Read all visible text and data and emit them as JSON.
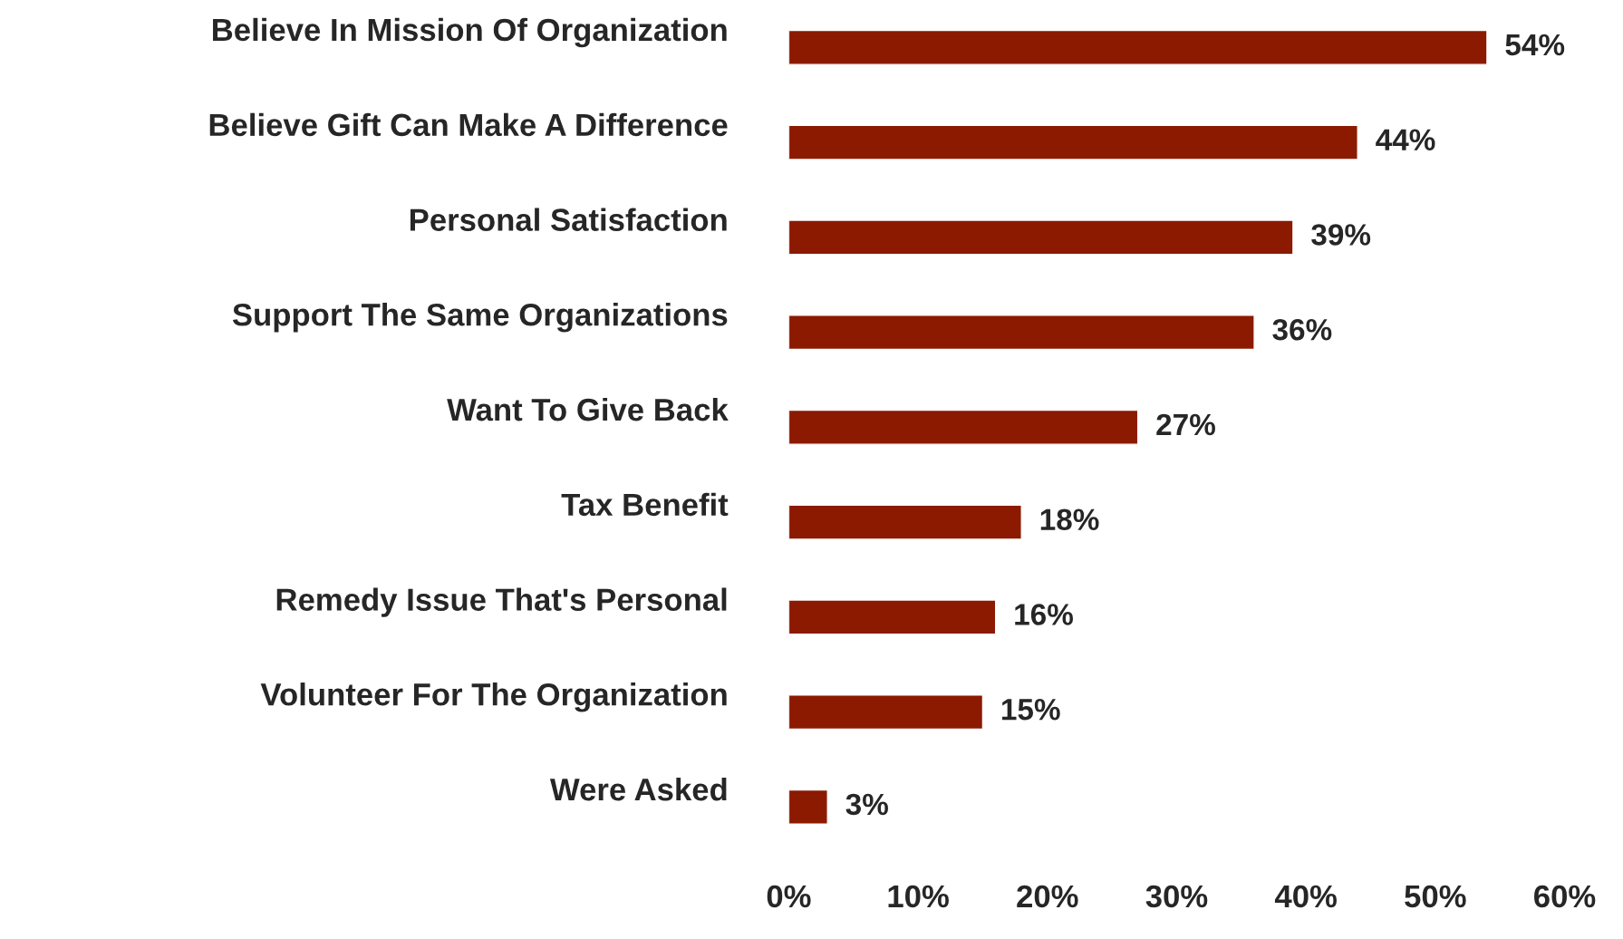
{
  "chart_data": {
    "type": "bar",
    "orientation": "horizontal",
    "categories": [
      "Believe In Mission Of Organization",
      "Believe Gift Can Make A Difference",
      "Personal Satisfaction",
      "Support The Same Organizations",
      "Want To Give Back",
      "Tax Benefit",
      "Remedy Issue That's Personal",
      "Volunteer For The Organization",
      "Were Asked"
    ],
    "values": [
      54,
      44,
      39,
      36,
      27,
      18,
      16,
      15,
      3
    ],
    "value_labels": [
      "54%",
      "44%",
      "39%",
      "36%",
      "27%",
      "18%",
      "16%",
      "15%",
      "3%"
    ],
    "color": "#8b1a00",
    "xlim": [
      0,
      60
    ],
    "xticks": [
      {
        "value": 0,
        "label": "0%"
      },
      {
        "value": 10,
        "label": "10%"
      },
      {
        "value": 20,
        "label": "20%"
      },
      {
        "value": 30,
        "label": "30%"
      },
      {
        "value": 40,
        "label": "40%"
      },
      {
        "value": 50,
        "label": "50%"
      },
      {
        "value": 60,
        "label": "60%"
      }
    ],
    "grid": false,
    "legend": false
  }
}
